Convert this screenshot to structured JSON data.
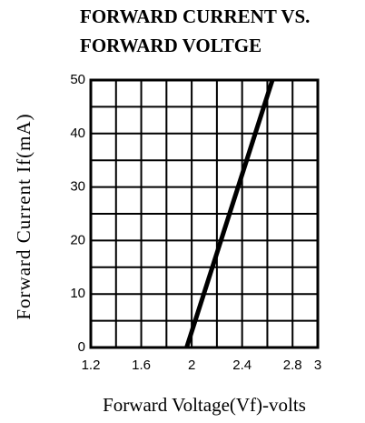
{
  "chart_data": {
    "type": "line",
    "title": [
      "FORWARD CURRENT VS.",
      "FORWARD VOLTGE"
    ],
    "x_label": "Forward Voltage(Vf)-volts",
    "y_label": "Forward  Current  If(mA)",
    "x": [
      1.96,
      2.64
    ],
    "values": [
      0,
      50
    ],
    "color": "#000000",
    "xlim": [
      1.2,
      3.0
    ],
    "xticks": [
      1.2,
      1.6,
      2.0,
      2.4,
      2.8,
      3.0
    ],
    "xminor": [
      1.4,
      1.8,
      2.2,
      2.6
    ],
    "ylim": [
      0,
      50
    ],
    "yticks": [
      0,
      10,
      20,
      30,
      40,
      50
    ],
    "yminor": [
      5,
      15,
      25,
      35,
      45
    ],
    "grid": true
  }
}
